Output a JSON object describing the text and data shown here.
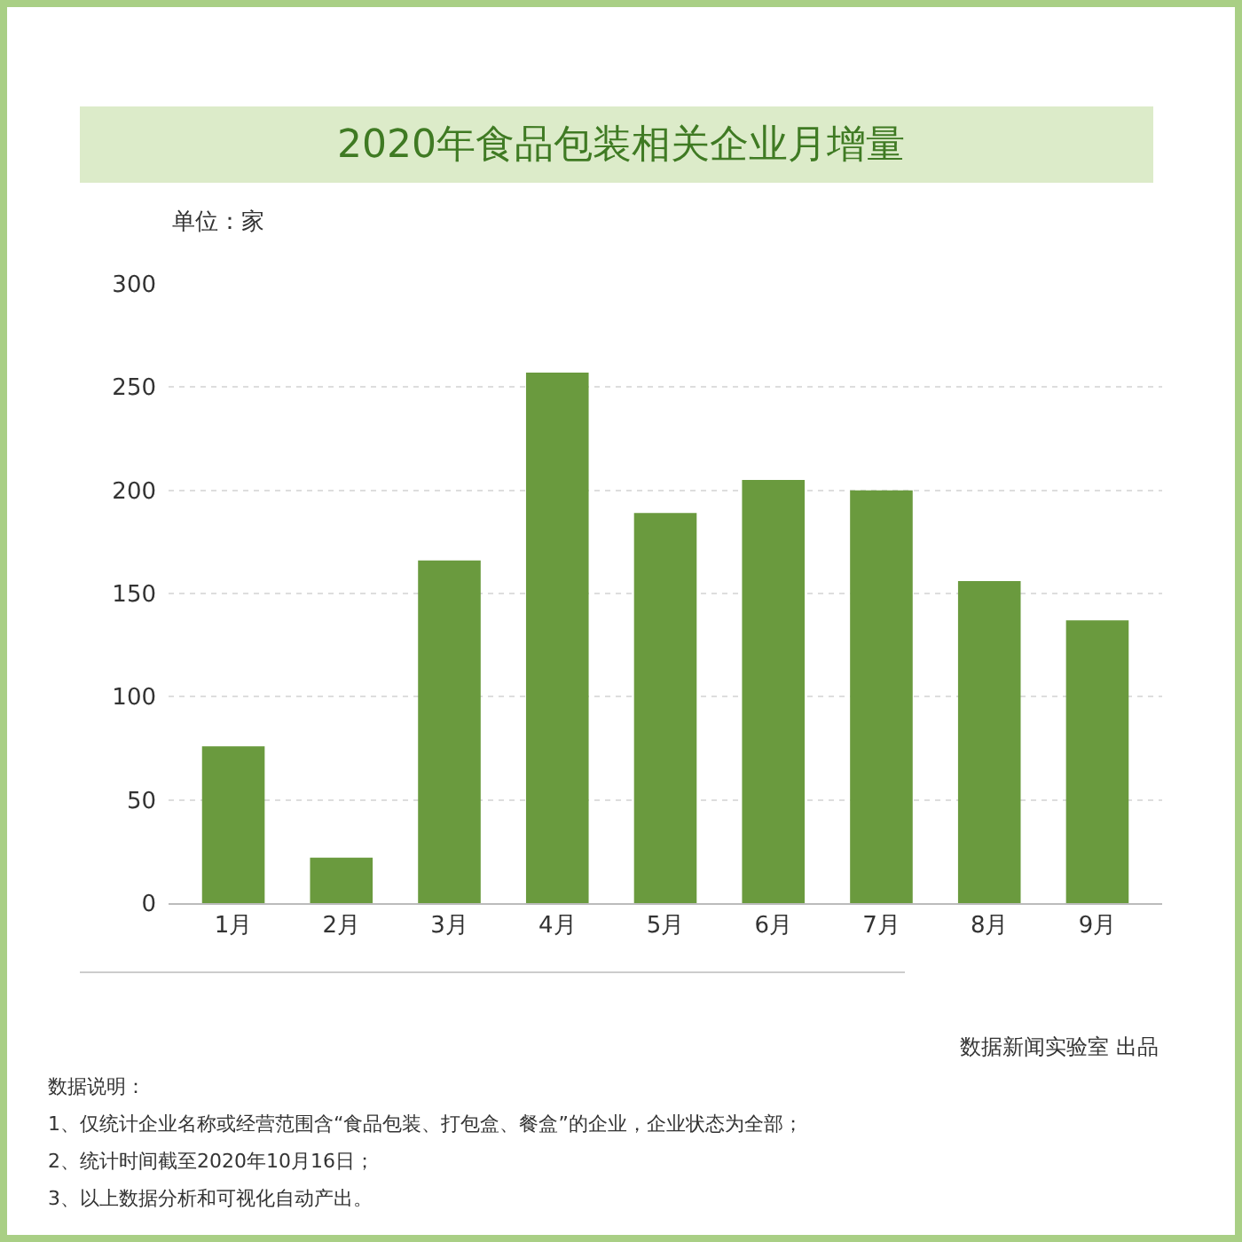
{
  "chart_data": {
    "type": "bar",
    "title": "2020年食品包装相关企业月增量",
    "ylabel": "单位：家",
    "categories": [
      "1月",
      "2月",
      "3月",
      "4月",
      "5月",
      "6月",
      "7月",
      "8月",
      "9月"
    ],
    "values": [
      76,
      22,
      166,
      257,
      189,
      205,
      200,
      156,
      137
    ],
    "color": "#6a9a3e",
    "ylim": [
      0,
      300
    ],
    "yticks": [
      0,
      50,
      100,
      150,
      200,
      250,
      300
    ],
    "grid": "y",
    "annotations": [
      "数据新闻实验室 出品",
      "数据说明：",
      "1、仅统计企业名称或经营范围含“食品包装、打包盒、餐盒”的企业，企业状态为全部；",
      "2、统计时间截至2020年10月16日；",
      "3、以上数据分析和可视化自动产出。"
    ]
  }
}
